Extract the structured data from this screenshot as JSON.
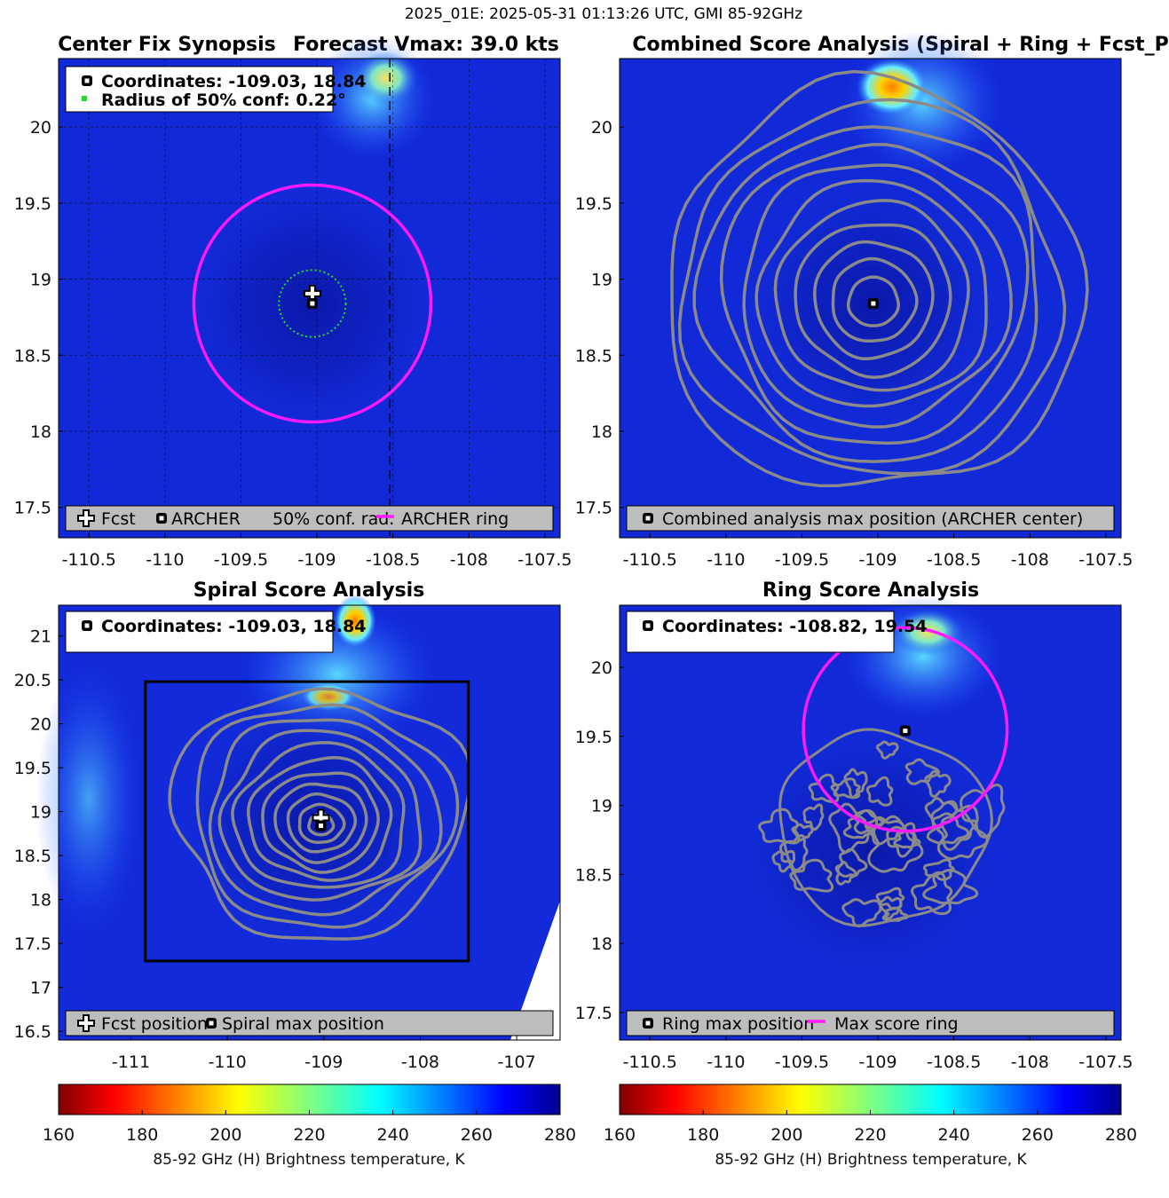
{
  "suptitle": "2025_01E: 2025-05-31 01:13:26 UTC, GMI 85-92GHz",
  "colors": {
    "ring": "#ff1aff",
    "contour": "#8a8a8a",
    "conf_circle": "#22dd22",
    "legend_bg": "#bdbdbd"
  },
  "chart_data": [
    {
      "id": "center_fix",
      "type": "heatmap",
      "title": "Center Fix Synopsis",
      "title2": "Forecast Vmax: 39.0 kts",
      "xlim": [
        -110.7,
        -107.4
      ],
      "ylim": [
        17.3,
        20.45
      ],
      "xticks": [
        -110.5,
        -110,
        -109.5,
        -109,
        -108.5,
        -108,
        -107.5
      ],
      "yticks": [
        17.5,
        18,
        18.5,
        19,
        19.5,
        20
      ],
      "xtick_labels": [
        "-110.5",
        "-110",
        "-109.5",
        "-109",
        "-108.5",
        "-108",
        "-107.5"
      ],
      "ytick_labels": [
        "17.5",
        "18",
        "18.5",
        "19",
        "19.5",
        "20"
      ],
      "grid": true,
      "info": [
        "Coordinates: -109.03, 18.84",
        "Radius of 50% conf: 0.22°"
      ],
      "fcst_position": [
        -109.03,
        18.87
      ],
      "archer_center": [
        -109.03,
        18.84
      ],
      "ring": {
        "lon": -109.03,
        "lat": 18.84,
        "radius_deg": 0.78
      },
      "conf_radius_deg": 0.22,
      "crosshair": [
        -108.52,
        20.5
      ],
      "legend": [
        "Fcst",
        "ARCHER",
        "50% conf. rad.",
        "ARCHER ring"
      ]
    },
    {
      "id": "combined",
      "type": "heatmap",
      "title": "Combined Score Analysis (Spiral + Ring + Fcst_Pe",
      "xlim": [
        -110.7,
        -107.4
      ],
      "ylim": [
        17.3,
        20.45
      ],
      "xticks": [
        -110.5,
        -110,
        -109.5,
        -109,
        -108.5,
        -108,
        -107.5
      ],
      "yticks": [
        17.5,
        18,
        18.5,
        19,
        19.5,
        20
      ],
      "xtick_labels": [
        "-110.5",
        "-110",
        "-109.5",
        "-109",
        "-108.5",
        "-108",
        "-107.5"
      ],
      "ytick_labels": [
        "17.5",
        "18",
        "18.5",
        "19",
        "19.5",
        "20"
      ],
      "max_position": [
        -109.03,
        18.84
      ],
      "contour_levels_deg": [
        0.16,
        0.27,
        0.38,
        0.5,
        0.62,
        0.74,
        0.86,
        0.98,
        1.1,
        1.22,
        1.34
      ],
      "legend": [
        "Combined analysis max position (ARCHER center)"
      ]
    },
    {
      "id": "spiral",
      "type": "heatmap",
      "title": "Spiral Score Analysis",
      "xlim": [
        -111.75,
        -106.55
      ],
      "ylim": [
        16.4,
        21.35
      ],
      "xticks": [
        -111,
        -110,
        -109,
        -108,
        -107
      ],
      "yticks": [
        16.5,
        17,
        17.5,
        18,
        18.5,
        19,
        19.5,
        20,
        20.5,
        21
      ],
      "xtick_labels": [
        "-111",
        "-110",
        "-109",
        "-108",
        "-107"
      ],
      "ytick_labels": [
        "16.5",
        "17",
        "17.5",
        "18",
        "18.5",
        "19",
        "19.5",
        "20",
        "20.5",
        "21"
      ],
      "info": [
        "Coordinates: -109.03, 18.84"
      ],
      "fcst_position": [
        -109.03,
        18.87
      ],
      "max_position": [
        -109.03,
        18.84
      ],
      "box": {
        "lon": [
          -110.85,
          -107.5
        ],
        "lat": [
          17.3,
          20.48
        ]
      },
      "contour_levels_deg": [
        0.12,
        0.22,
        0.33,
        0.45,
        0.57,
        0.7,
        0.84,
        0.98,
        1.13,
        1.28,
        1.45
      ],
      "legend": [
        "Fcst position",
        "Spiral max position"
      ]
    },
    {
      "id": "ring",
      "type": "heatmap",
      "title": "Ring Score Analysis",
      "xlim": [
        -110.7,
        -107.4
      ],
      "ylim": [
        17.3,
        20.45
      ],
      "xticks": [
        -110.5,
        -110,
        -109.5,
        -109,
        -108.5,
        -108,
        -107.5
      ],
      "yticks": [
        17.5,
        18,
        18.5,
        19,
        19.5,
        20
      ],
      "xtick_labels": [
        "-110.5",
        "-110",
        "-109.5",
        "-109",
        "-108.5",
        "-108",
        "-107.5"
      ],
      "ytick_labels": [
        "17.5",
        "18",
        "18.5",
        "19",
        "19.5",
        "20"
      ],
      "info": [
        "Coordinates: -108.82, 19.54"
      ],
      "max_position": [
        -108.82,
        19.54
      ],
      "ring": {
        "lon": -108.82,
        "lat": 19.55,
        "radius_deg": 0.67
      },
      "legend": [
        "Ring max position",
        "Max score ring"
      ]
    }
  ],
  "colorbar": {
    "min": 160,
    "max": 280,
    "ticks": [
      160,
      180,
      200,
      220,
      240,
      260,
      280
    ],
    "tick_labels": [
      "160",
      "180",
      "200",
      "220",
      "240",
      "260",
      "280"
    ],
    "label": "85-92 GHz (H) Brightness temperature, K",
    "colormap": "jet_reversed"
  }
}
